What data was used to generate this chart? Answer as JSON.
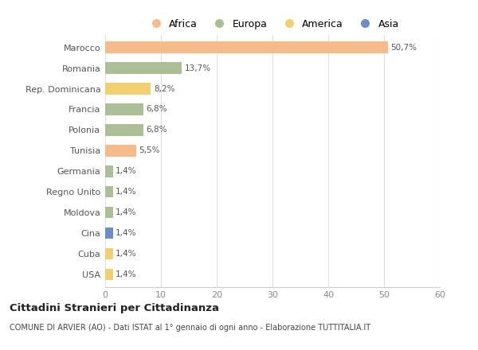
{
  "countries": [
    "Marocco",
    "Romania",
    "Rep. Dominicana",
    "Francia",
    "Polonia",
    "Tunisia",
    "Germania",
    "Regno Unito",
    "Moldova",
    "Cina",
    "Cuba",
    "USA"
  ],
  "values": [
    50.7,
    13.7,
    8.2,
    6.8,
    6.8,
    5.5,
    1.4,
    1.4,
    1.4,
    1.4,
    1.4,
    1.4
  ],
  "labels": [
    "50,7%",
    "13,7%",
    "8,2%",
    "6,8%",
    "6,8%",
    "5,5%",
    "1,4%",
    "1,4%",
    "1,4%",
    "1,4%",
    "1,4%",
    "1,4%"
  ],
  "colors": [
    "#F5BB8A",
    "#ABBE96",
    "#F0D070",
    "#ABBE96",
    "#ABBE96",
    "#F5BB8A",
    "#ABBE96",
    "#ABBE96",
    "#ABBE96",
    "#6B8EC6",
    "#F0D070",
    "#F0D070"
  ],
  "legend_labels": [
    "Africa",
    "Europa",
    "America",
    "Asia"
  ],
  "legend_colors": [
    "#F5BB8A",
    "#ABBE96",
    "#F0D070",
    "#6B8EC6"
  ],
  "xlim": [
    0,
    60
  ],
  "xticks": [
    0,
    10,
    20,
    30,
    40,
    50,
    60
  ],
  "title": "Cittadini Stranieri per Cittadinanza",
  "subtitle": "COMUNE DI ARVIER (AO) - Dati ISTAT al 1° gennaio di ogni anno - Elaborazione TUTTITALIA.IT",
  "bg_color": "#ffffff",
  "grid_color": "#e0e0e0",
  "bar_height": 0.55
}
